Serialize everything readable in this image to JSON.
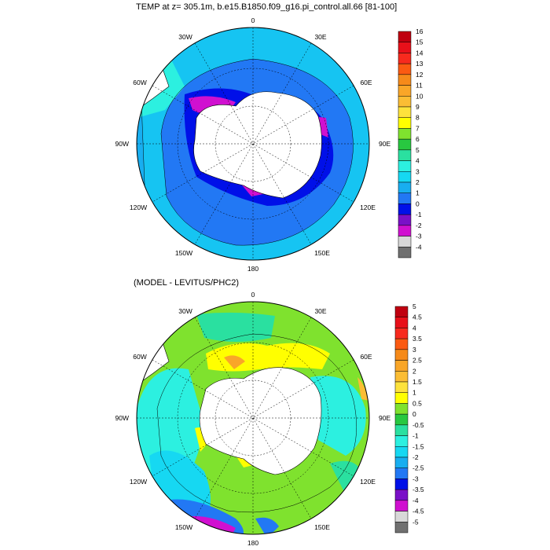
{
  "panels": [
    {
      "title": "TEMP at z= 305.1m, b.e15.B1850.f09_g16.pi_control.all.66 [81-100]",
      "lon_labels": [
        "0",
        "30E",
        "60E",
        "90E",
        "120E",
        "150E",
        "180",
        "150W",
        "120W",
        "90W",
        "60W",
        "30W"
      ],
      "colorbar_labels": [
        "16",
        "15",
        "14",
        "13",
        "12",
        "11",
        "10",
        "9",
        "8",
        "7",
        "6",
        "5",
        "4",
        "3",
        "2",
        "1",
        "0",
        "-1",
        "-2",
        "-3",
        "-4"
      ],
      "colorbar_colors": [
        "#c00010",
        "#e8101a",
        "#f72a1e",
        "#fb5a12",
        "#f68a1a",
        "#f9a628",
        "#fbbd34",
        "#fde23c",
        "#ffff00",
        "#7fe22e",
        "#28c840",
        "#2ae0a0",
        "#2cf0e0",
        "#16d8f2",
        "#18aef0",
        "#2278f4",
        "#0010e8",
        "#7a10c8",
        "#d010d0",
        "#d8d8d8",
        "#707070"
      ]
    },
    {
      "title": "(MODEL - LEVITUS/PHC2)",
      "lon_labels": [
        "0",
        "30E",
        "60E",
        "90E",
        "120E",
        "150E",
        "180",
        "150W",
        "120W",
        "90W",
        "60W",
        "30W"
      ],
      "colorbar_labels": [
        "5",
        "4.5",
        "4",
        "3.5",
        "3",
        "2.5",
        "2",
        "1.5",
        "1",
        "0.5",
        "0",
        "-0.5",
        "-1",
        "-1.5",
        "-2",
        "-2.5",
        "-3",
        "-3.5",
        "-4",
        "-4.5",
        "-5"
      ],
      "colorbar_colors": [
        "#c00010",
        "#e8101a",
        "#f72a1e",
        "#fb5a12",
        "#f68a1a",
        "#f9a628",
        "#fbbd34",
        "#fde23c",
        "#ffff00",
        "#7fe22e",
        "#28c840",
        "#2ae0a0",
        "#2cf0e0",
        "#16d8f2",
        "#18aef0",
        "#2278f4",
        "#0010e8",
        "#7a10c8",
        "#d010d0",
        "#d8d8d8",
        "#707070"
      ]
    }
  ]
}
